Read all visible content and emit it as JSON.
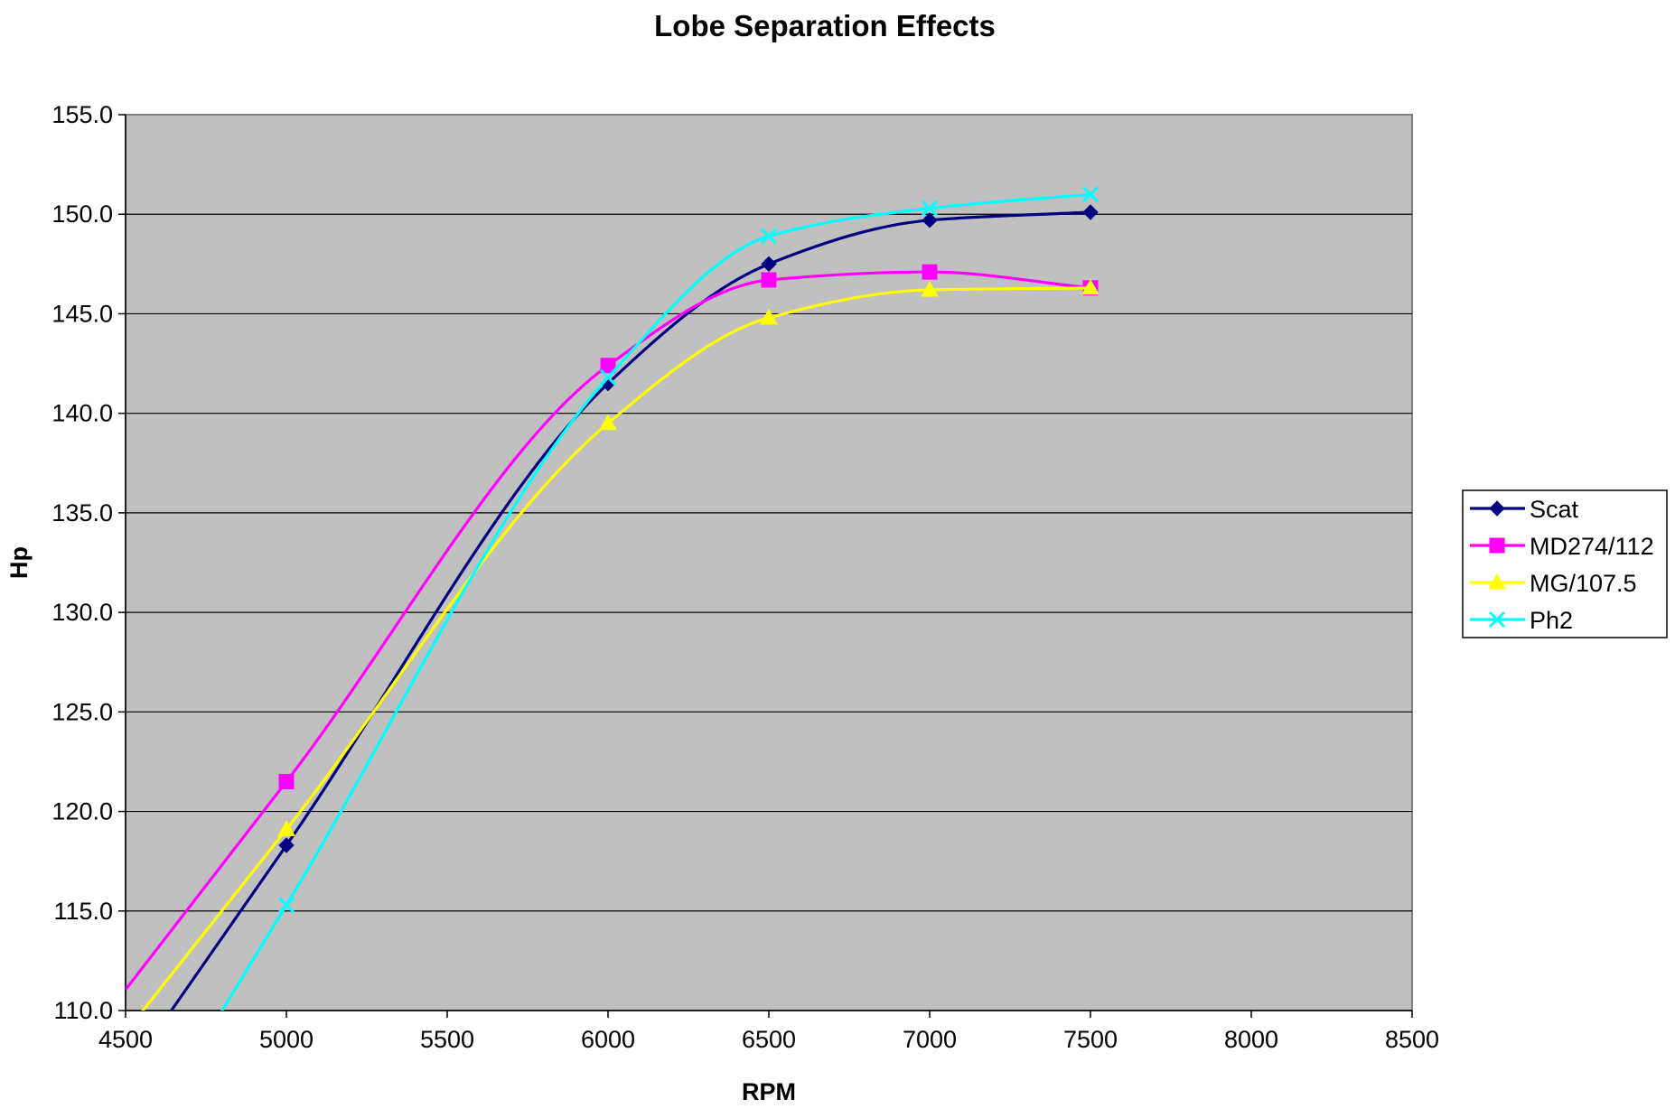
{
  "chart_data": {
    "type": "line",
    "title": "Lobe Separation Effects",
    "xlabel": "RPM",
    "ylabel": "Hp",
    "xlim": [
      4500,
      8500
    ],
    "ylim": [
      110,
      155
    ],
    "x_ticks": [
      "4500",
      "5000",
      "5500",
      "6000",
      "6500",
      "7000",
      "7500",
      "8000",
      "8500"
    ],
    "y_ticks": [
      "110.0",
      "115.0",
      "120.0",
      "125.0",
      "130.0",
      "135.0",
      "140.0",
      "145.0",
      "150.0",
      "155.0"
    ],
    "grid": "horizontal",
    "legend_position": "right",
    "plot_background": "#C0C0C0",
    "x": [
      5000,
      6000,
      6500,
      7000,
      7500
    ],
    "series": [
      {
        "name": "Scat",
        "color": "#000080",
        "marker": "diamond",
        "values": [
          118.3,
          141.5,
          147.5,
          149.7,
          150.1
        ]
      },
      {
        "name": "MD274/112",
        "color": "#FF00FF",
        "marker": "square",
        "values": [
          121.5,
          142.4,
          146.7,
          147.1,
          146.3
        ]
      },
      {
        "name": "MG/107.5",
        "color": "#FFFF00",
        "marker": "triangle",
        "values": [
          119.1,
          139.5,
          144.8,
          146.2,
          146.3
        ]
      },
      {
        "name": "Ph2",
        "color": "#00FFFF",
        "marker": "x",
        "values": [
          115.3,
          141.8,
          148.9,
          150.3,
          151.0
        ]
      }
    ]
  }
}
